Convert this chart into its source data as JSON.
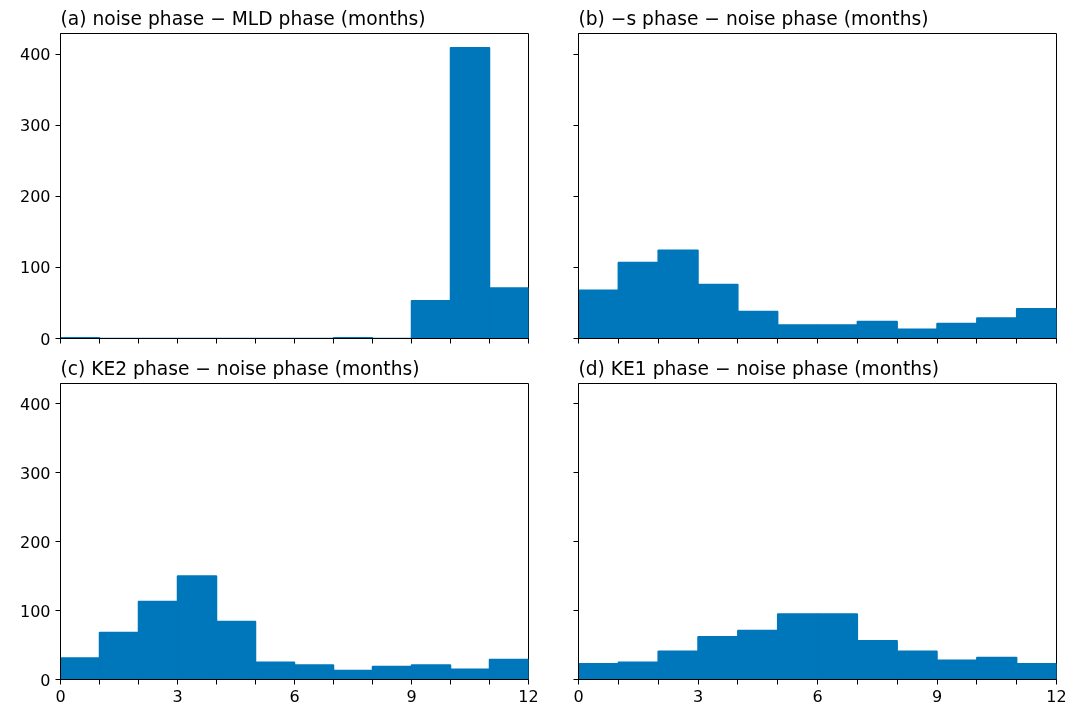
{
  "chart_data": [
    {
      "type": "histogram",
      "title": "(a) noise phase − MLD phase (months)",
      "bins": [
        0,
        1,
        2,
        3,
        4,
        5,
        6,
        7,
        8,
        9,
        10,
        11,
        12
      ],
      "values": [
        1,
        0,
        0,
        0,
        0,
        0,
        0,
        1,
        0,
        53,
        409,
        71
      ],
      "color": "#0077bb",
      "xlim": [
        0,
        12
      ],
      "xticks": [
        0,
        {
          "value": 1,
          "label": null
        },
        {
          "value": 2,
          "label": null
        },
        3,
        {
          "value": 4,
          "label": null
        },
        {
          "value": 5,
          "label": null
        },
        6,
        {
          "value": 7,
          "label": null
        },
        {
          "value": 8,
          "label": null
        },
        9,
        {
          "value": 10,
          "label": null
        },
        {
          "value": 11,
          "label": null
        },
        12
      ],
      "ylim": [
        0,
        429
      ],
      "yticks": [
        0,
        100,
        200,
        300,
        400
      ],
      "grid": false,
      "tick_labels": "y"
    },
    {
      "type": "histogram",
      "title": "(b) −s phase − noise phase (months)",
      "bins": [
        0,
        1,
        2,
        3,
        4,
        5,
        6,
        7,
        8,
        9,
        10,
        11,
        12
      ],
      "values": [
        68,
        107,
        124,
        76,
        38,
        19,
        19,
        24,
        13,
        21,
        29,
        42
      ],
      "color": "#0077bb",
      "xlim": [
        0,
        12
      ],
      "xticks": [
        0,
        {
          "value": 1,
          "label": null
        },
        {
          "value": 2,
          "label": null
        },
        3,
        {
          "value": 4,
          "label": null
        },
        {
          "value": 5,
          "label": null
        },
        6,
        {
          "value": 7,
          "label": null
        },
        {
          "value": 8,
          "label": null
        },
        9,
        {
          "value": 10,
          "label": null
        },
        {
          "value": 11,
          "label": null
        },
        12
      ],
      "ylim": [
        0,
        429
      ],
      "yticks": [
        0,
        100,
        200,
        300,
        400
      ],
      "grid": false,
      "tick_labels": false
    },
    {
      "type": "histogram",
      "title": "(c) KE2 phase − noise phase (months)",
      "bins": [
        0,
        1,
        2,
        3,
        4,
        5,
        6,
        7,
        8,
        9,
        10,
        11,
        12
      ],
      "values": [
        31,
        68,
        113,
        150,
        84,
        25,
        21,
        13,
        19,
        21,
        15,
        29
      ],
      "color": "#0077bb",
      "xlim": [
        0,
        12
      ],
      "xticks": [
        0,
        {
          "value": 1,
          "label": null
        },
        {
          "value": 2,
          "label": null
        },
        3,
        {
          "value": 4,
          "label": null
        },
        {
          "value": 5,
          "label": null
        },
        6,
        {
          "value": 7,
          "label": null
        },
        {
          "value": 8,
          "label": null
        },
        9,
        {
          "value": 10,
          "label": null
        },
        {
          "value": 11,
          "label": null
        },
        12
      ],
      "ylim": [
        0,
        429
      ],
      "yticks": [
        0,
        100,
        200,
        300,
        400
      ],
      "grid": false
    },
    {
      "type": "histogram",
      "title": "(d) KE1 phase − noise phase (months)",
      "bins": [
        0,
        1,
        2,
        3,
        4,
        5,
        6,
        7,
        8,
        9,
        10,
        11,
        12
      ],
      "values": [
        23,
        25,
        41,
        62,
        71,
        95,
        95,
        56,
        41,
        28,
        32,
        23
      ],
      "color": "#0077bb",
      "xlim": [
        0,
        12
      ],
      "xticks": [
        0,
        {
          "value": 1,
          "label": null
        },
        {
          "value": 2,
          "label": null
        },
        3,
        {
          "value": 4,
          "label": null
        },
        {
          "value": 5,
          "label": null
        },
        6,
        {
          "value": 7,
          "label": null
        },
        {
          "value": 8,
          "label": null
        },
        9,
        {
          "value": 10,
          "label": null
        },
        {
          "value": 11,
          "label": null
        },
        12
      ],
      "ylim": [
        0,
        429
      ],
      "yticks": [
        0,
        100,
        200,
        300,
        400
      ],
      "grid": false,
      "tick_labels": "x"
    }
  ]
}
